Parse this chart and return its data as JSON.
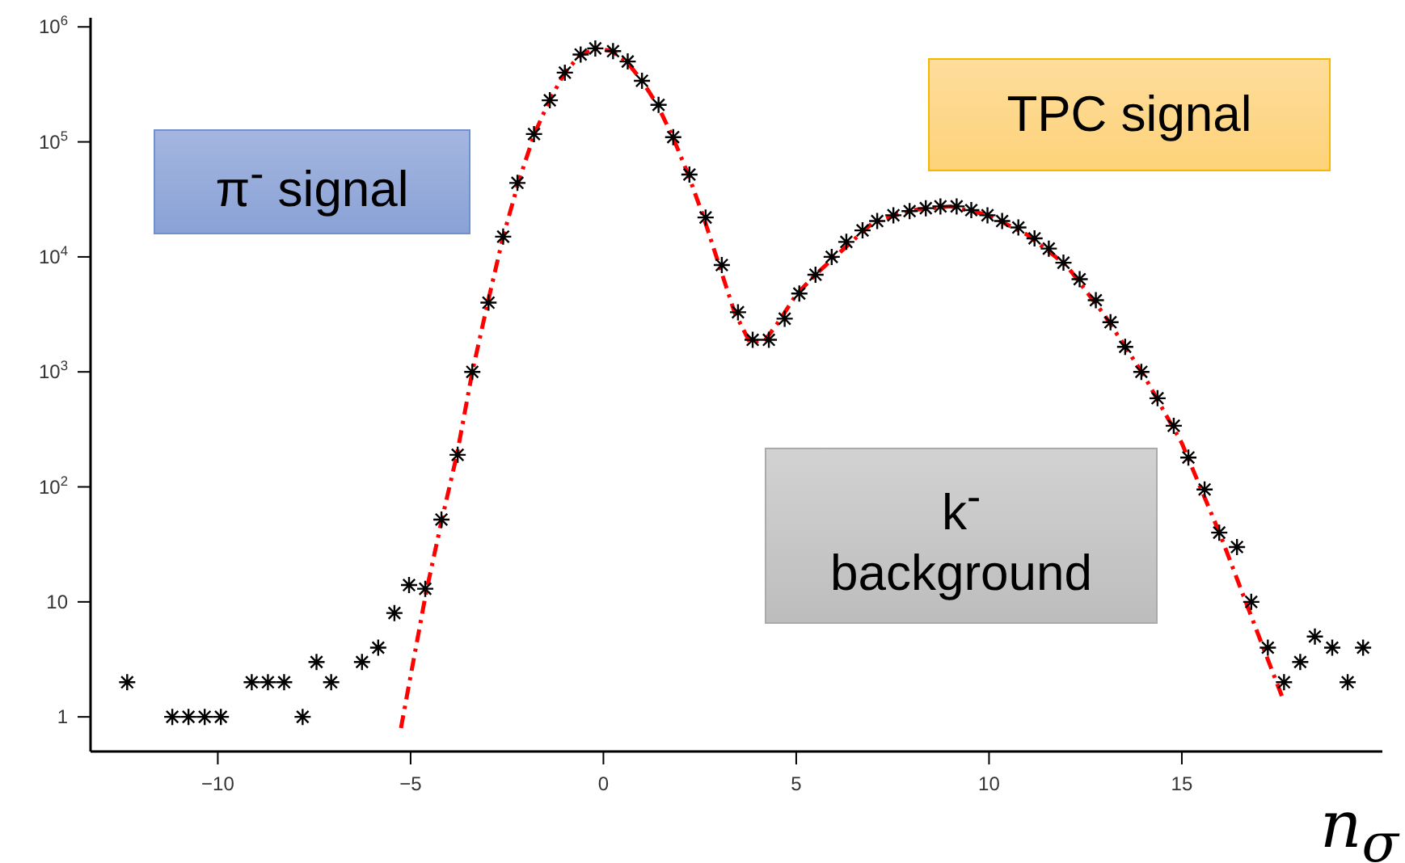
{
  "chart_data": {
    "type": "scatter",
    "xlabel": "n$_{σ}$",
    "xlim": [
      -13.3,
      20.2
    ],
    "ylim": [
      0.5,
      1200000
    ],
    "log": "y",
    "xticks": [
      {
        "value": -10,
        "label": "−10"
      },
      {
        "value": -5,
        "label": "−5"
      },
      0,
      5,
      10,
      15
    ],
    "yticks": [
      1,
      10,
      {
        "value": 100,
        "label": "10$^{2}$"
      },
      {
        "value": 1000,
        "label": "10$^{3}$"
      },
      {
        "value": 10000,
        "label": "10$^{4}$"
      },
      {
        "value": 100000,
        "label": "10$^{5}$"
      },
      {
        "value": 1000000,
        "label": "10$^{6}$"
      }
    ],
    "grid": false,
    "legend": false,
    "annotations": [
      "π$^{-}$ signal",
      "TPC signal",
      "k$^{-}$ background"
    ],
    "series": [
      {
        "color": "#000000",
        "marker": "cross",
        "x": [
          -12.35,
          -11.18,
          -10.76,
          -10.34,
          -9.92,
          -9.12,
          -8.7,
          -8.28,
          -7.8,
          -7.44,
          -7.06,
          -6.26,
          -5.84,
          -5.42,
          -5.04,
          -4.62,
          -4.2,
          -3.78,
          -3.4,
          -2.98,
          -2.6,
          -2.23,
          -1.8,
          -1.39,
          -1.0,
          -0.59,
          -0.21,
          0.25,
          0.63,
          1.0,
          1.43,
          1.81,
          2.23,
          2.65,
          3.07,
          3.49,
          3.87,
          4.29,
          4.7,
          5.08,
          5.5,
          5.92,
          6.3,
          6.72,
          7.1,
          7.52,
          7.94,
          8.36,
          8.74,
          9.16,
          9.54,
          9.96,
          10.34,
          10.76,
          11.18,
          11.55,
          11.93,
          12.35,
          12.77,
          13.15,
          13.53,
          13.95,
          14.37,
          14.79,
          15.17,
          15.59,
          15.97,
          16.43,
          16.8,
          17.23,
          17.65,
          18.07,
          18.45,
          18.9,
          19.3,
          19.7
        ],
        "values": [
          2,
          1,
          1,
          1,
          1,
          2,
          2,
          2,
          1,
          3,
          2,
          3,
          4,
          8,
          14,
          13,
          52,
          190,
          1000,
          4000,
          15000,
          44000,
          117000,
          230000,
          400000,
          575000,
          650000,
          615000,
          500000,
          340000,
          210000,
          110000,
          52000,
          22000,
          8500,
          3300,
          1900,
          1900,
          2900,
          4800,
          7000,
          10000,
          13500,
          17000,
          20500,
          23000,
          25000,
          26500,
          27500,
          27500,
          25500,
          23000,
          20500,
          18000,
          14500,
          11800,
          8900,
          6400,
          4200,
          2700,
          1650,
          1000,
          590,
          340,
          180,
          95,
          40,
          30,
          10,
          4,
          2,
          3,
          5,
          4,
          2,
          4
        ]
      },
      {
        "type": "line",
        "color": "#ff0000",
        "line_style": "dashed",
        "marker": "none",
        "x": [
          -5.25,
          -4.6,
          -4.2,
          -3.8,
          -3.4,
          -3.0,
          -2.6,
          -2.2,
          -1.8,
          -1.4,
          -1.0,
          -0.6,
          -0.2,
          0.2,
          0.6,
          1.0,
          1.4,
          1.8,
          2.2,
          2.6,
          3.0,
          3.4,
          3.8,
          4.2,
          4.6,
          5.0,
          5.5,
          6.0,
          7.0,
          8.0,
          9.0,
          10.0,
          11.0,
          12.0,
          13.0,
          14.0,
          15.0,
          16.0,
          17.0,
          17.6
        ],
        "values": [
          0.8,
          12,
          50,
          190,
          1000,
          4000,
          15000,
          45000,
          115000,
          230000,
          400000,
          570000,
          650000,
          620000,
          500000,
          340000,
          210000,
          110000,
          52000,
          22000,
          8500,
          3300,
          1800,
          1900,
          2900,
          4700,
          7000,
          10000,
          20000,
          25500,
          27500,
          23000,
          15500,
          8500,
          3100,
          950,
          240,
          38,
          5,
          1.5
        ]
      }
    ]
  }
}
